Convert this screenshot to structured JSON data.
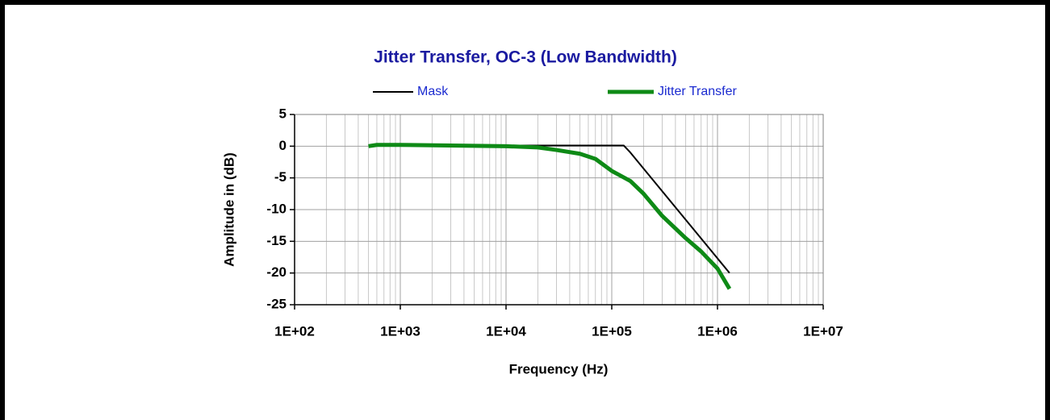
{
  "chart_data": {
    "type": "line",
    "title": "Jitter Transfer, OC-3 (Low Bandwidth)",
    "x_label": "Frequency (Hz)",
    "y_label": "Amplitude in (dB)",
    "log_x": true,
    "grid": true,
    "minor_grid": true,
    "legend": "top",
    "xlim": [
      100,
      10000000
    ],
    "ylim": [
      -25,
      5
    ],
    "xticks": [
      {
        "value": 100,
        "label": "1E+02"
      },
      {
        "value": 1000,
        "label": "1E+03"
      },
      {
        "value": 10000,
        "label": "1E+04"
      },
      {
        "value": 100000,
        "label": "1E+05"
      },
      {
        "value": 1000000,
        "label": "1E+06"
      },
      {
        "value": 10000000,
        "label": "1E+07"
      }
    ],
    "yticks": [
      5,
      0,
      -5,
      -10,
      -15,
      -20,
      -25
    ],
    "series": [
      {
        "name": "Mask",
        "color": "#000000",
        "width": 2,
        "x": [
          500,
          130000,
          150000,
          1300000
        ],
        "values": [
          0.1,
          0.1,
          -1,
          -20
        ]
      },
      {
        "name": "Jitter Transfer",
        "color": "#0e8a16",
        "width": 5,
        "x": [
          500,
          600,
          1000,
          10000,
          20000,
          30000,
          50000,
          70000,
          100000,
          150000,
          200000,
          300000,
          500000,
          700000,
          1000000,
          1300000
        ],
        "values": [
          0,
          0.2,
          0.2,
          0,
          -0.2,
          -0.6,
          -1.2,
          -2,
          -3.9,
          -5.5,
          -7.5,
          -11,
          -14.5,
          -16.6,
          -19.3,
          -22.5
        ]
      }
    ]
  }
}
